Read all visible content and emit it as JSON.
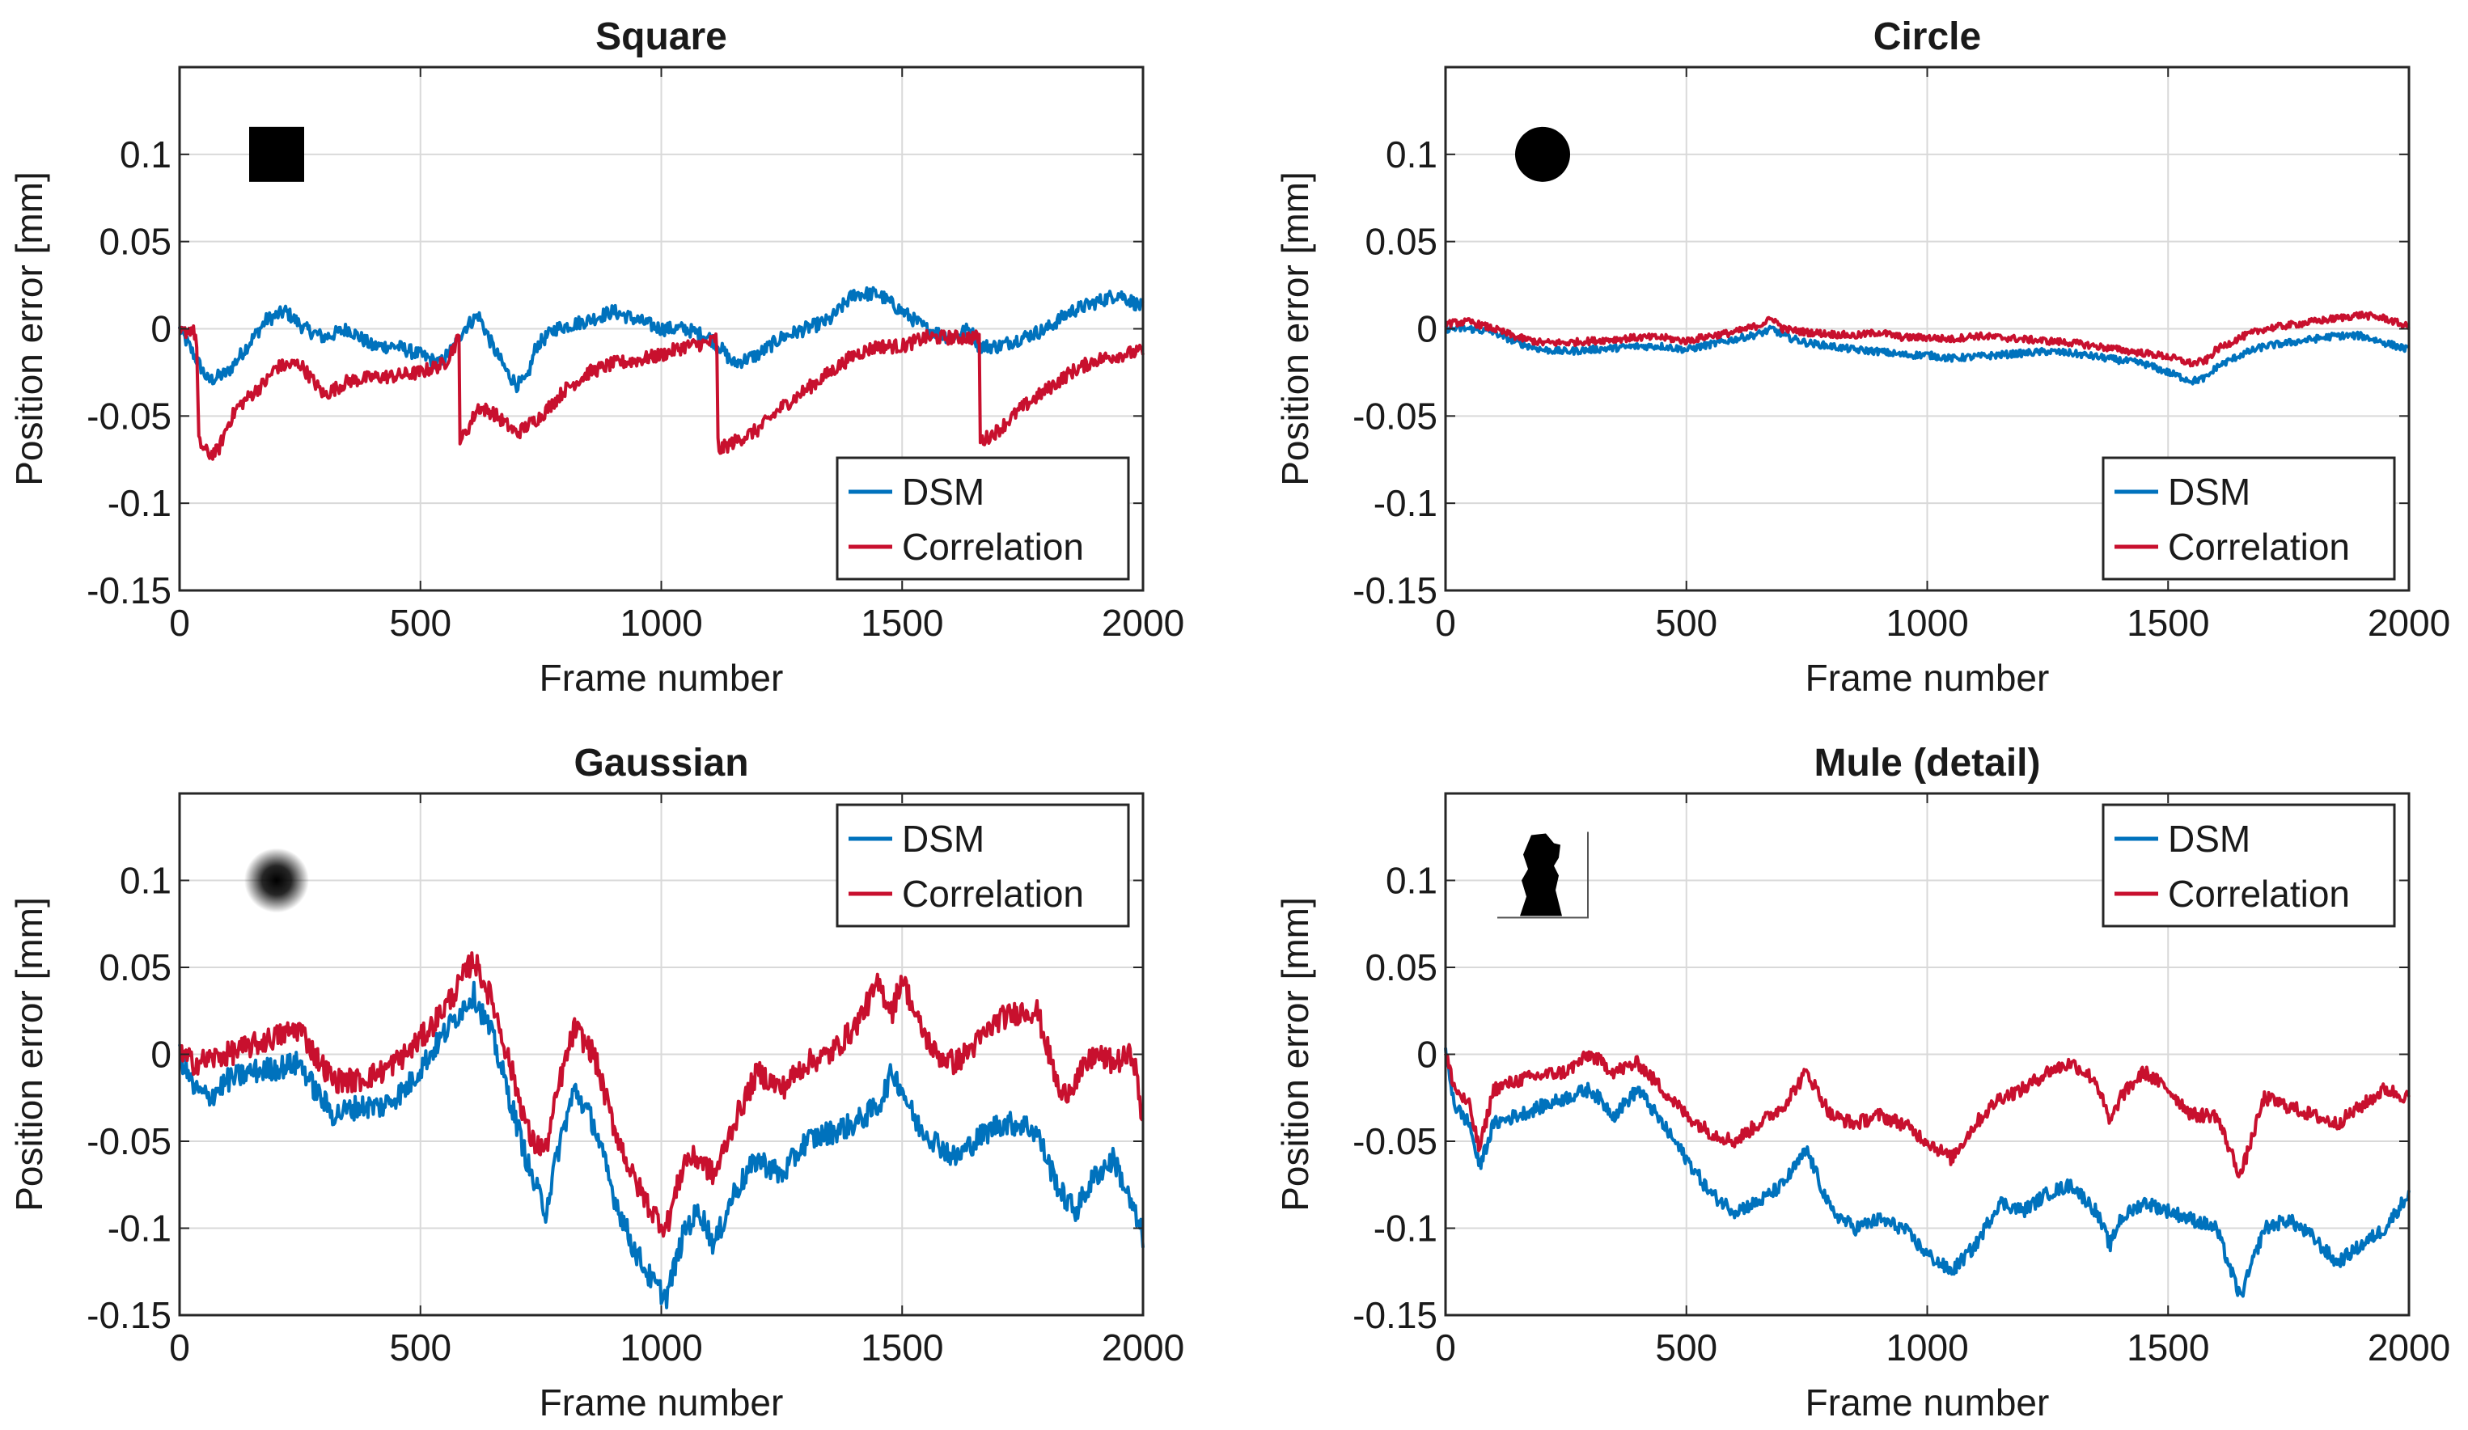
{
  "colors": {
    "dsm": "#0072BD",
    "correlation": "#C8102E",
    "grid": "#d9d9d9",
    "axis": "#262626"
  },
  "chart_data": [
    {
      "type": "line",
      "title": "Square",
      "icon": "square-target-icon",
      "xlabel": "Frame number",
      "ylabel": "Position error [mm]",
      "xlim": [
        0,
        2000
      ],
      "ylim": [
        -0.15,
        0.15
      ],
      "xticks": [
        0,
        500,
        1000,
        1500,
        2000
      ],
      "yticks": [
        -0.15,
        -0.1,
        -0.05,
        0,
        0.05,
        0.1
      ],
      "xtick_labels": [
        "0",
        "500",
        "1000",
        "1500",
        "2000"
      ],
      "ytick_labels": [
        "-0.15",
        "-0.1",
        "-0.05",
        "0",
        "0.05",
        "0.1"
      ],
      "grid": true,
      "legend_position": "bottom-right",
      "noise": 0.004,
      "series": [
        {
          "name": "DSM",
          "color_key": "dsm",
          "x": [
            0,
            20,
            60,
            100,
            140,
            180,
            220,
            260,
            300,
            350,
            400,
            450,
            500,
            540,
            570,
            590,
            620,
            650,
            680,
            700,
            720,
            740,
            780,
            850,
            900,
            950,
            1000,
            1050,
            1100,
            1120,
            1150,
            1200,
            1250,
            1300,
            1350,
            1400,
            1450,
            1500,
            1550,
            1600,
            1640,
            1660,
            1700,
            1750,
            1800,
            1850,
            1900,
            1950,
            2000
          ],
          "values": [
            0,
            -0.01,
            -0.03,
            -0.025,
            -0.01,
            0.005,
            0.01,
            0,
            -0.005,
            0,
            -0.01,
            -0.01,
            -0.015,
            -0.02,
            -0.01,
            0,
            0.008,
            -0.01,
            -0.025,
            -0.032,
            -0.03,
            -0.01,
            0,
            0.005,
            0.01,
            0.005,
            0,
            0,
            -0.005,
            -0.01,
            -0.02,
            -0.015,
            -0.005,
            0,
            0.005,
            0.02,
            0.02,
            0.01,
            0,
            -0.005,
            0,
            -0.01,
            -0.01,
            -0.005,
            0,
            0.01,
            0.015,
            0.02,
            0.012
          ]
        },
        {
          "name": "Correlation",
          "color_key": "correlation",
          "x": [
            0,
            25,
            35,
            40,
            60,
            80,
            100,
            120,
            140,
            160,
            180,
            200,
            250,
            300,
            350,
            400,
            450,
            500,
            550,
            580,
            582,
            590,
            620,
            650,
            700,
            750,
            800,
            850,
            900,
            950,
            1000,
            1050,
            1100,
            1115,
            1118,
            1130,
            1150,
            1200,
            1250,
            1300,
            1350,
            1400,
            1450,
            1500,
            1550,
            1600,
            1650,
            1660,
            1662,
            1700,
            1750,
            1800,
            1850,
            1900,
            1950,
            2000
          ],
          "values": [
            -0.003,
            0,
            -0.005,
            -0.065,
            -0.072,
            -0.07,
            -0.055,
            -0.045,
            -0.04,
            -0.035,
            -0.03,
            -0.022,
            -0.02,
            -0.038,
            -0.03,
            -0.028,
            -0.027,
            -0.025,
            -0.02,
            -0.005,
            -0.062,
            -0.062,
            -0.045,
            -0.048,
            -0.06,
            -0.05,
            -0.035,
            -0.025,
            -0.02,
            -0.018,
            -0.015,
            -0.01,
            -0.008,
            -0.005,
            -0.07,
            -0.068,
            -0.065,
            -0.058,
            -0.045,
            -0.035,
            -0.025,
            -0.015,
            -0.01,
            -0.01,
            -0.005,
            -0.005,
            -0.005,
            -0.005,
            -0.065,
            -0.058,
            -0.045,
            -0.035,
            -0.025,
            -0.018,
            -0.015,
            -0.013
          ]
        }
      ]
    },
    {
      "type": "line",
      "title": "Circle",
      "icon": "circle-target-icon",
      "xlabel": "Frame number",
      "ylabel": "Position error [mm]",
      "xlim": [
        0,
        2000
      ],
      "ylim": [
        -0.15,
        0.15
      ],
      "xticks": [
        0,
        500,
        1000,
        1500,
        2000
      ],
      "yticks": [
        -0.15,
        -0.1,
        -0.05,
        0,
        0.05,
        0.1
      ],
      "xtick_labels": [
        "0",
        "500",
        "1000",
        "1500",
        "2000"
      ],
      "ytick_labels": [
        "-0.15",
        "-0.1",
        "-0.05",
        "0",
        "0.05",
        "0.1"
      ],
      "grid": true,
      "legend_position": "bottom-right",
      "noise": 0.002,
      "series": [
        {
          "name": "DSM",
          "color_key": "dsm",
          "x": [
            0,
            50,
            100,
            150,
            200,
            250,
            300,
            350,
            400,
            450,
            500,
            550,
            600,
            650,
            680,
            700,
            750,
            800,
            850,
            900,
            950,
            1000,
            1050,
            1100,
            1150,
            1200,
            1250,
            1300,
            1350,
            1400,
            1450,
            1500,
            1550,
            1580,
            1600,
            1650,
            1700,
            1750,
            1800,
            1850,
            1900,
            1950,
            2000
          ],
          "values": [
            0,
            0,
            -0.002,
            -0.008,
            -0.012,
            -0.013,
            -0.012,
            -0.011,
            -0.01,
            -0.01,
            -0.012,
            -0.009,
            -0.006,
            -0.003,
            0,
            -0.004,
            -0.008,
            -0.01,
            -0.012,
            -0.013,
            -0.015,
            -0.015,
            -0.017,
            -0.016,
            -0.015,
            -0.014,
            -0.013,
            -0.014,
            -0.016,
            -0.018,
            -0.02,
            -0.025,
            -0.03,
            -0.028,
            -0.022,
            -0.015,
            -0.01,
            -0.008,
            -0.006,
            -0.004,
            -0.004,
            -0.008,
            -0.012
          ]
        },
        {
          "name": "Correlation",
          "color_key": "correlation",
          "x": [
            0,
            50,
            100,
            150,
            200,
            250,
            300,
            350,
            400,
            450,
            500,
            550,
            600,
            650,
            680,
            700,
            750,
            800,
            850,
            900,
            950,
            1000,
            1050,
            1100,
            1150,
            1200,
            1250,
            1300,
            1350,
            1400,
            1450,
            1500,
            1550,
            1580,
            1600,
            1650,
            1700,
            1750,
            1800,
            1850,
            1900,
            1950,
            2000
          ],
          "values": [
            0.003,
            0.004,
            0,
            -0.005,
            -0.008,
            -0.008,
            -0.007,
            -0.006,
            -0.005,
            -0.005,
            -0.007,
            -0.004,
            -0.002,
            0.002,
            0.006,
            0,
            -0.002,
            -0.003,
            -0.004,
            -0.002,
            -0.005,
            -0.005,
            -0.006,
            -0.004,
            -0.005,
            -0.006,
            -0.007,
            -0.008,
            -0.01,
            -0.012,
            -0.014,
            -0.016,
            -0.02,
            -0.018,
            -0.012,
            -0.005,
            0,
            0.002,
            0.004,
            0.006,
            0.008,
            0.006,
            0.001
          ]
        }
      ]
    },
    {
      "type": "line",
      "title": "Gaussian",
      "icon": "gaussian-target-icon",
      "xlabel": "Frame number",
      "ylabel": "Position error [mm]",
      "xlim": [
        0,
        2000
      ],
      "ylim": [
        -0.15,
        0.15
      ],
      "xticks": [
        0,
        500,
        1000,
        1500,
        2000
      ],
      "yticks": [
        -0.15,
        -0.1,
        -0.05,
        0,
        0.05,
        0.1
      ],
      "xtick_labels": [
        "0",
        "500",
        "1000",
        "1500",
        "2000"
      ],
      "ytick_labels": [
        "-0.15",
        "-0.1",
        "-0.05",
        "0",
        "0.05",
        "0.1"
      ],
      "grid": true,
      "legend_position": "top-right",
      "noise": 0.007,
      "series": [
        {
          "name": "DSM",
          "color_key": "dsm",
          "x": [
            0,
            30,
            60,
            100,
            150,
            200,
            250,
            280,
            320,
            370,
            420,
            470,
            520,
            570,
            610,
            650,
            700,
            730,
            760,
            790,
            820,
            860,
            900,
            940,
            980,
            1010,
            1050,
            1080,
            1110,
            1150,
            1200,
            1250,
            1300,
            1350,
            1400,
            1450,
            1480,
            1500,
            1530,
            1570,
            1610,
            1650,
            1700,
            1750,
            1780,
            1800,
            1830,
            1860,
            1900,
            1940,
            1980,
            2000
          ],
          "values": [
            0,
            -0.02,
            -0.025,
            -0.015,
            -0.01,
            -0.008,
            -0.005,
            -0.02,
            -0.035,
            -0.03,
            -0.03,
            -0.02,
            0,
            0.02,
            0.035,
            0.01,
            -0.04,
            -0.07,
            -0.09,
            -0.05,
            -0.02,
            -0.04,
            -0.08,
            -0.11,
            -0.13,
            -0.14,
            -0.1,
            -0.09,
            -0.11,
            -0.08,
            -0.06,
            -0.07,
            -0.05,
            -0.045,
            -0.04,
            -0.03,
            -0.01,
            -0.02,
            -0.04,
            -0.05,
            -0.06,
            -0.05,
            -0.04,
            -0.04,
            -0.045,
            -0.06,
            -0.08,
            -0.09,
            -0.07,
            -0.06,
            -0.09,
            -0.105
          ]
        },
        {
          "name": "Correlation",
          "color_key": "correlation",
          "x": [
            0,
            30,
            60,
            100,
            150,
            200,
            250,
            280,
            320,
            370,
            420,
            470,
            520,
            570,
            610,
            650,
            700,
            730,
            760,
            790,
            820,
            860,
            900,
            940,
            980,
            1010,
            1050,
            1080,
            1110,
            1150,
            1200,
            1250,
            1300,
            1350,
            1400,
            1450,
            1480,
            1500,
            1530,
            1570,
            1610,
            1650,
            1700,
            1750,
            1780,
            1800,
            1830,
            1860,
            1900,
            1940,
            1980,
            2000
          ],
          "values": [
            0,
            -0.005,
            -0.003,
            0,
            0.005,
            0.01,
            0.015,
            0,
            -0.015,
            -0.015,
            -0.01,
            0,
            0.015,
            0.035,
            0.055,
            0.03,
            -0.02,
            -0.05,
            -0.055,
            -0.015,
            0.015,
            0,
            -0.04,
            -0.07,
            -0.09,
            -0.1,
            -0.06,
            -0.06,
            -0.07,
            -0.04,
            -0.01,
            -0.02,
            -0.005,
            0,
            0.015,
            0.04,
            0.025,
            0.045,
            0.02,
            0,
            -0.005,
            0.005,
            0.02,
            0.025,
            0.025,
            0.005,
            -0.025,
            -0.015,
            0,
            -0.005,
            0,
            -0.04
          ]
        }
      ]
    },
    {
      "type": "line",
      "title": "Mule (detail)",
      "icon": "mule-silhouette-icon",
      "xlabel": "Frame number",
      "ylabel": "Position error [mm]",
      "xlim": [
        0,
        2000
      ],
      "ylim": [
        -0.15,
        0.15
      ],
      "xticks": [
        0,
        500,
        1000,
        1500,
        2000
      ],
      "yticks": [
        -0.15,
        -0.1,
        -0.05,
        0,
        0.05,
        0.1
      ],
      "xtick_labels": [
        "0",
        "500",
        "1000",
        "1500",
        "2000"
      ],
      "ytick_labels": [
        "-0.15",
        "-0.1",
        "-0.05",
        "0",
        "0.05",
        "0.1"
      ],
      "grid": true,
      "legend_position": "top-right",
      "noise": 0.004,
      "series": [
        {
          "name": "DSM",
          "color_key": "dsm",
          "x": [
            0,
            20,
            50,
            70,
            100,
            150,
            200,
            250,
            300,
            350,
            400,
            450,
            500,
            550,
            600,
            650,
            700,
            750,
            800,
            850,
            900,
            950,
            1000,
            1050,
            1100,
            1150,
            1200,
            1250,
            1300,
            1350,
            1380,
            1400,
            1450,
            1500,
            1550,
            1600,
            1650,
            1700,
            1750,
            1800,
            1850,
            1900,
            1950,
            2000
          ],
          "values": [
            0,
            -0.03,
            -0.04,
            -0.065,
            -0.04,
            -0.035,
            -0.03,
            -0.025,
            -0.02,
            -0.035,
            -0.02,
            -0.04,
            -0.06,
            -0.08,
            -0.09,
            -0.085,
            -0.075,
            -0.055,
            -0.09,
            -0.1,
            -0.095,
            -0.1,
            -0.115,
            -0.125,
            -0.11,
            -0.085,
            -0.09,
            -0.08,
            -0.075,
            -0.09,
            -0.11,
            -0.095,
            -0.085,
            -0.09,
            -0.095,
            -0.1,
            -0.14,
            -0.1,
            -0.095,
            -0.105,
            -0.12,
            -0.11,
            -0.1,
            -0.08
          ]
        },
        {
          "name": "Correlation",
          "color_key": "correlation",
          "x": [
            0,
            20,
            50,
            70,
            100,
            150,
            200,
            250,
            300,
            350,
            400,
            450,
            500,
            550,
            600,
            650,
            700,
            750,
            800,
            850,
            900,
            950,
            1000,
            1050,
            1100,
            1150,
            1200,
            1250,
            1300,
            1350,
            1380,
            1400,
            1450,
            1500,
            1550,
            1600,
            1650,
            1700,
            1750,
            1800,
            1850,
            1900,
            1950,
            2000
          ],
          "values": [
            0,
            -0.02,
            -0.03,
            -0.055,
            -0.02,
            -0.015,
            -0.012,
            -0.01,
            0,
            -0.01,
            -0.005,
            -0.02,
            -0.035,
            -0.045,
            -0.05,
            -0.04,
            -0.03,
            -0.01,
            -0.035,
            -0.04,
            -0.035,
            -0.04,
            -0.05,
            -0.06,
            -0.04,
            -0.025,
            -0.02,
            -0.01,
            -0.005,
            -0.015,
            -0.04,
            -0.025,
            -0.01,
            -0.02,
            -0.035,
            -0.035,
            -0.07,
            -0.025,
            -0.03,
            -0.035,
            -0.04,
            -0.03,
            -0.02,
            -0.025
          ]
        }
      ]
    }
  ]
}
